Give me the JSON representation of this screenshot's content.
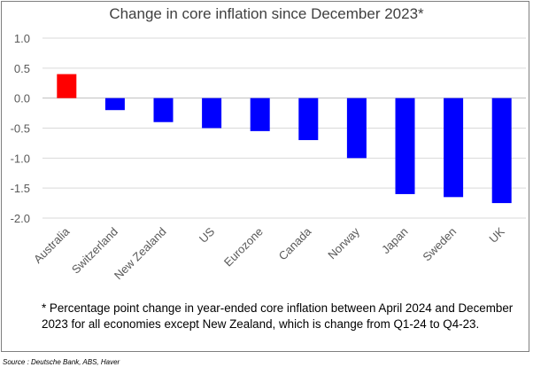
{
  "title": "Change in core inflation since December 2023*",
  "footnote": "* Percentage point change in year-ended core inflation between April 2024 and December 2023 for all economies except New Zealand, which is change from Q1-24 to Q4-23.",
  "source": "Source : Deutsche Bank, ABS, Haver",
  "colors": {
    "positive": "#ff0000",
    "negative": "#0000ff",
    "grid": "#d9d9d9",
    "text": "#595959"
  },
  "chart_data": {
    "type": "bar",
    "title": "Change in core inflation since December 2023*",
    "xlabel": "",
    "ylabel": "",
    "ylim": [
      -2.0,
      1.0
    ],
    "yticks": [
      1.0,
      0.5,
      0.0,
      -0.5,
      -1.0,
      -1.5,
      -2.0
    ],
    "ytick_labels": [
      "1.0",
      "0.5",
      "0.0",
      "-0.5",
      "-1.0",
      "-1.5",
      "-2.0"
    ],
    "grid": true,
    "categories": [
      "Australia",
      "Switzerland",
      "New Zealand",
      "US",
      "Eurozone",
      "Canada",
      "Norway",
      "Japan",
      "Sweden",
      "UK"
    ],
    "values": [
      0.4,
      -0.2,
      -0.4,
      -0.5,
      -0.55,
      -0.7,
      -1.0,
      -1.6,
      -1.65,
      -1.75
    ]
  }
}
